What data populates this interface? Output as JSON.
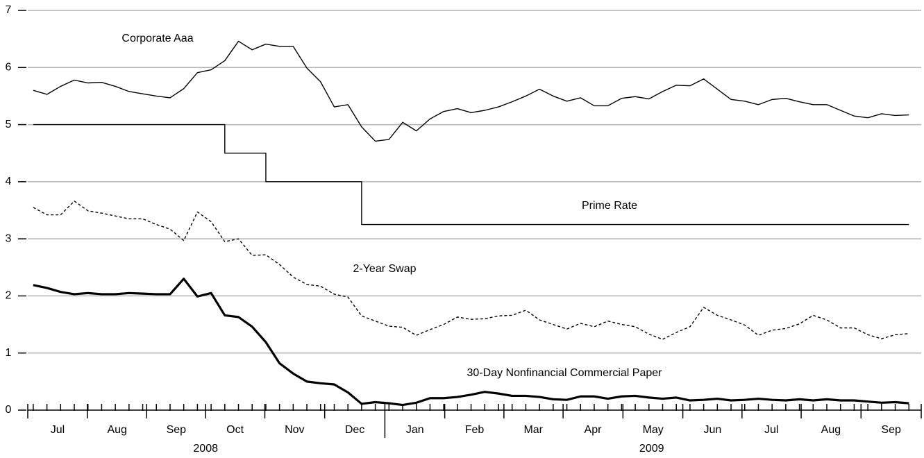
{
  "chart_data": {
    "type": "line",
    "x": [
      0,
      1,
      2,
      3,
      4,
      5,
      6,
      7,
      8,
      9,
      10,
      11,
      12,
      13,
      14,
      15,
      16,
      17,
      18,
      19,
      20,
      21,
      22,
      23,
      24,
      25,
      26,
      27,
      28,
      29,
      30,
      31,
      32,
      33,
      34,
      35,
      36,
      37,
      38,
      39,
      40,
      41,
      42,
      43,
      44,
      45,
      46,
      47,
      48,
      49,
      50,
      51,
      52,
      53,
      54,
      55,
      56,
      57,
      58,
      59,
      60,
      61,
      62,
      63,
      64
    ],
    "xlim": [
      -0.4,
      64.9
    ],
    "xticks": [
      {
        "value": 1.78,
        "label": "Jul"
      },
      {
        "value": 6.13,
        "label": "Aug"
      },
      {
        "value": 10.45,
        "label": "Sep"
      },
      {
        "value": 14.75,
        "label": "Oct"
      },
      {
        "value": 19.1,
        "label": "Nov"
      },
      {
        "value": 23.5,
        "label": "Dec"
      },
      {
        "value": 27.9,
        "label": "Jan"
      },
      {
        "value": 32.25,
        "label": "Feb"
      },
      {
        "value": 36.55,
        "label": "Mar"
      },
      {
        "value": 40.9,
        "label": "Apr"
      },
      {
        "value": 45.3,
        "label": "May"
      },
      {
        "value": 49.65,
        "label": "Jun"
      },
      {
        "value": 53.95,
        "label": "Jul"
      },
      {
        "value": 58.3,
        "label": "Aug"
      },
      {
        "value": 62.7,
        "label": "Sep"
      }
    ],
    "year_ticks": [
      {
        "value": 12.6,
        "label": "2008"
      },
      {
        "value": 45.2,
        "label": "2009"
      }
    ],
    "ylim": [
      0,
      7
    ],
    "yticks": [
      0,
      1,
      2,
      3,
      4,
      5,
      6,
      7
    ],
    "grid": true,
    "series": [
      {
        "name": "Corporate Aaa",
        "color": "#000000",
        "values": [
          5.6,
          5.53,
          5.67,
          5.78,
          5.73,
          5.74,
          5.67,
          5.58,
          5.54,
          5.5,
          5.47,
          5.63,
          5.91,
          5.96,
          6.12,
          6.46,
          6.31,
          6.41,
          6.37,
          6.37,
          5.99,
          5.75,
          5.31,
          5.35,
          4.96,
          4.71,
          4.74,
          5.04,
          4.89,
          5.1,
          5.23,
          5.28,
          5.21,
          5.25,
          5.31,
          5.4,
          5.5,
          5.62,
          5.5,
          5.41,
          5.47,
          5.33,
          5.33,
          5.46,
          5.49,
          5.45,
          5.58,
          5.69,
          5.68,
          5.8,
          5.62,
          5.44,
          5.41,
          5.35,
          5.44,
          5.46,
          5.4,
          5.35,
          5.35,
          5.25,
          5.15,
          5.12,
          5.19,
          5.16,
          5.17
        ]
      },
      {
        "name": "Prime Rate",
        "color": "#000000",
        "step": true,
        "values": [
          5,
          5,
          5,
          5,
          5,
          5,
          5,
          5,
          5,
          5,
          5,
          5,
          5,
          5,
          4.5,
          4.5,
          4.5,
          4,
          4,
          4,
          4,
          4,
          4,
          4,
          3.25,
          3.25,
          3.25,
          3.25,
          3.25,
          3.25,
          3.25,
          3.25,
          3.25,
          3.25,
          3.25,
          3.25,
          3.25,
          3.25,
          3.25,
          3.25,
          3.25,
          3.25,
          3.25,
          3.25,
          3.25,
          3.25,
          3.25,
          3.25,
          3.25,
          3.25,
          3.25,
          3.25,
          3.25,
          3.25,
          3.25,
          3.25,
          3.25,
          3.25,
          3.25,
          3.25,
          3.25,
          3.25,
          3.25,
          3.25,
          3.25
        ]
      },
      {
        "name": "2-Year Swap",
        "color": "#000000",
        "dashed": true,
        "values": [
          3.55,
          3.42,
          3.42,
          3.66,
          3.49,
          3.45,
          3.4,
          3.35,
          3.35,
          3.25,
          3.17,
          2.97,
          3.47,
          3.3,
          2.95,
          3.0,
          2.71,
          2.72,
          2.55,
          2.33,
          2.2,
          2.17,
          2.03,
          1.98,
          1.65,
          1.56,
          1.47,
          1.45,
          1.31,
          1.41,
          1.5,
          1.63,
          1.59,
          1.6,
          1.65,
          1.66,
          1.75,
          1.58,
          1.5,
          1.42,
          1.52,
          1.46,
          1.56,
          1.5,
          1.46,
          1.33,
          1.24,
          1.36,
          1.46,
          1.8,
          1.66,
          1.58,
          1.49,
          1.31,
          1.4,
          1.43,
          1.51,
          1.66,
          1.58,
          1.44,
          1.44,
          1.32,
          1.25,
          1.32,
          1.34
        ]
      },
      {
        "name": "30-Day Nonfinancial Commercial Paper",
        "color": "#000000",
        "bold": true,
        "values": [
          2.19,
          2.14,
          2.07,
          2.03,
          2.05,
          2.03,
          2.03,
          2.05,
          2.04,
          2.03,
          2.03,
          2.3,
          1.99,
          2.05,
          1.66,
          1.63,
          1.46,
          1.19,
          0.82,
          0.64,
          0.5,
          0.47,
          0.45,
          0.31,
          0.11,
          0.14,
          0.12,
          0.09,
          0.13,
          0.21,
          0.21,
          0.23,
          0.27,
          0.32,
          0.29,
          0.25,
          0.25,
          0.23,
          0.19,
          0.18,
          0.24,
          0.24,
          0.2,
          0.24,
          0.25,
          0.22,
          0.2,
          0.22,
          0.17,
          0.18,
          0.2,
          0.17,
          0.18,
          0.2,
          0.18,
          0.17,
          0.19,
          0.17,
          0.19,
          0.17,
          0.17,
          0.15,
          0.13,
          0.14,
          0.12
        ]
      }
    ]
  }
}
